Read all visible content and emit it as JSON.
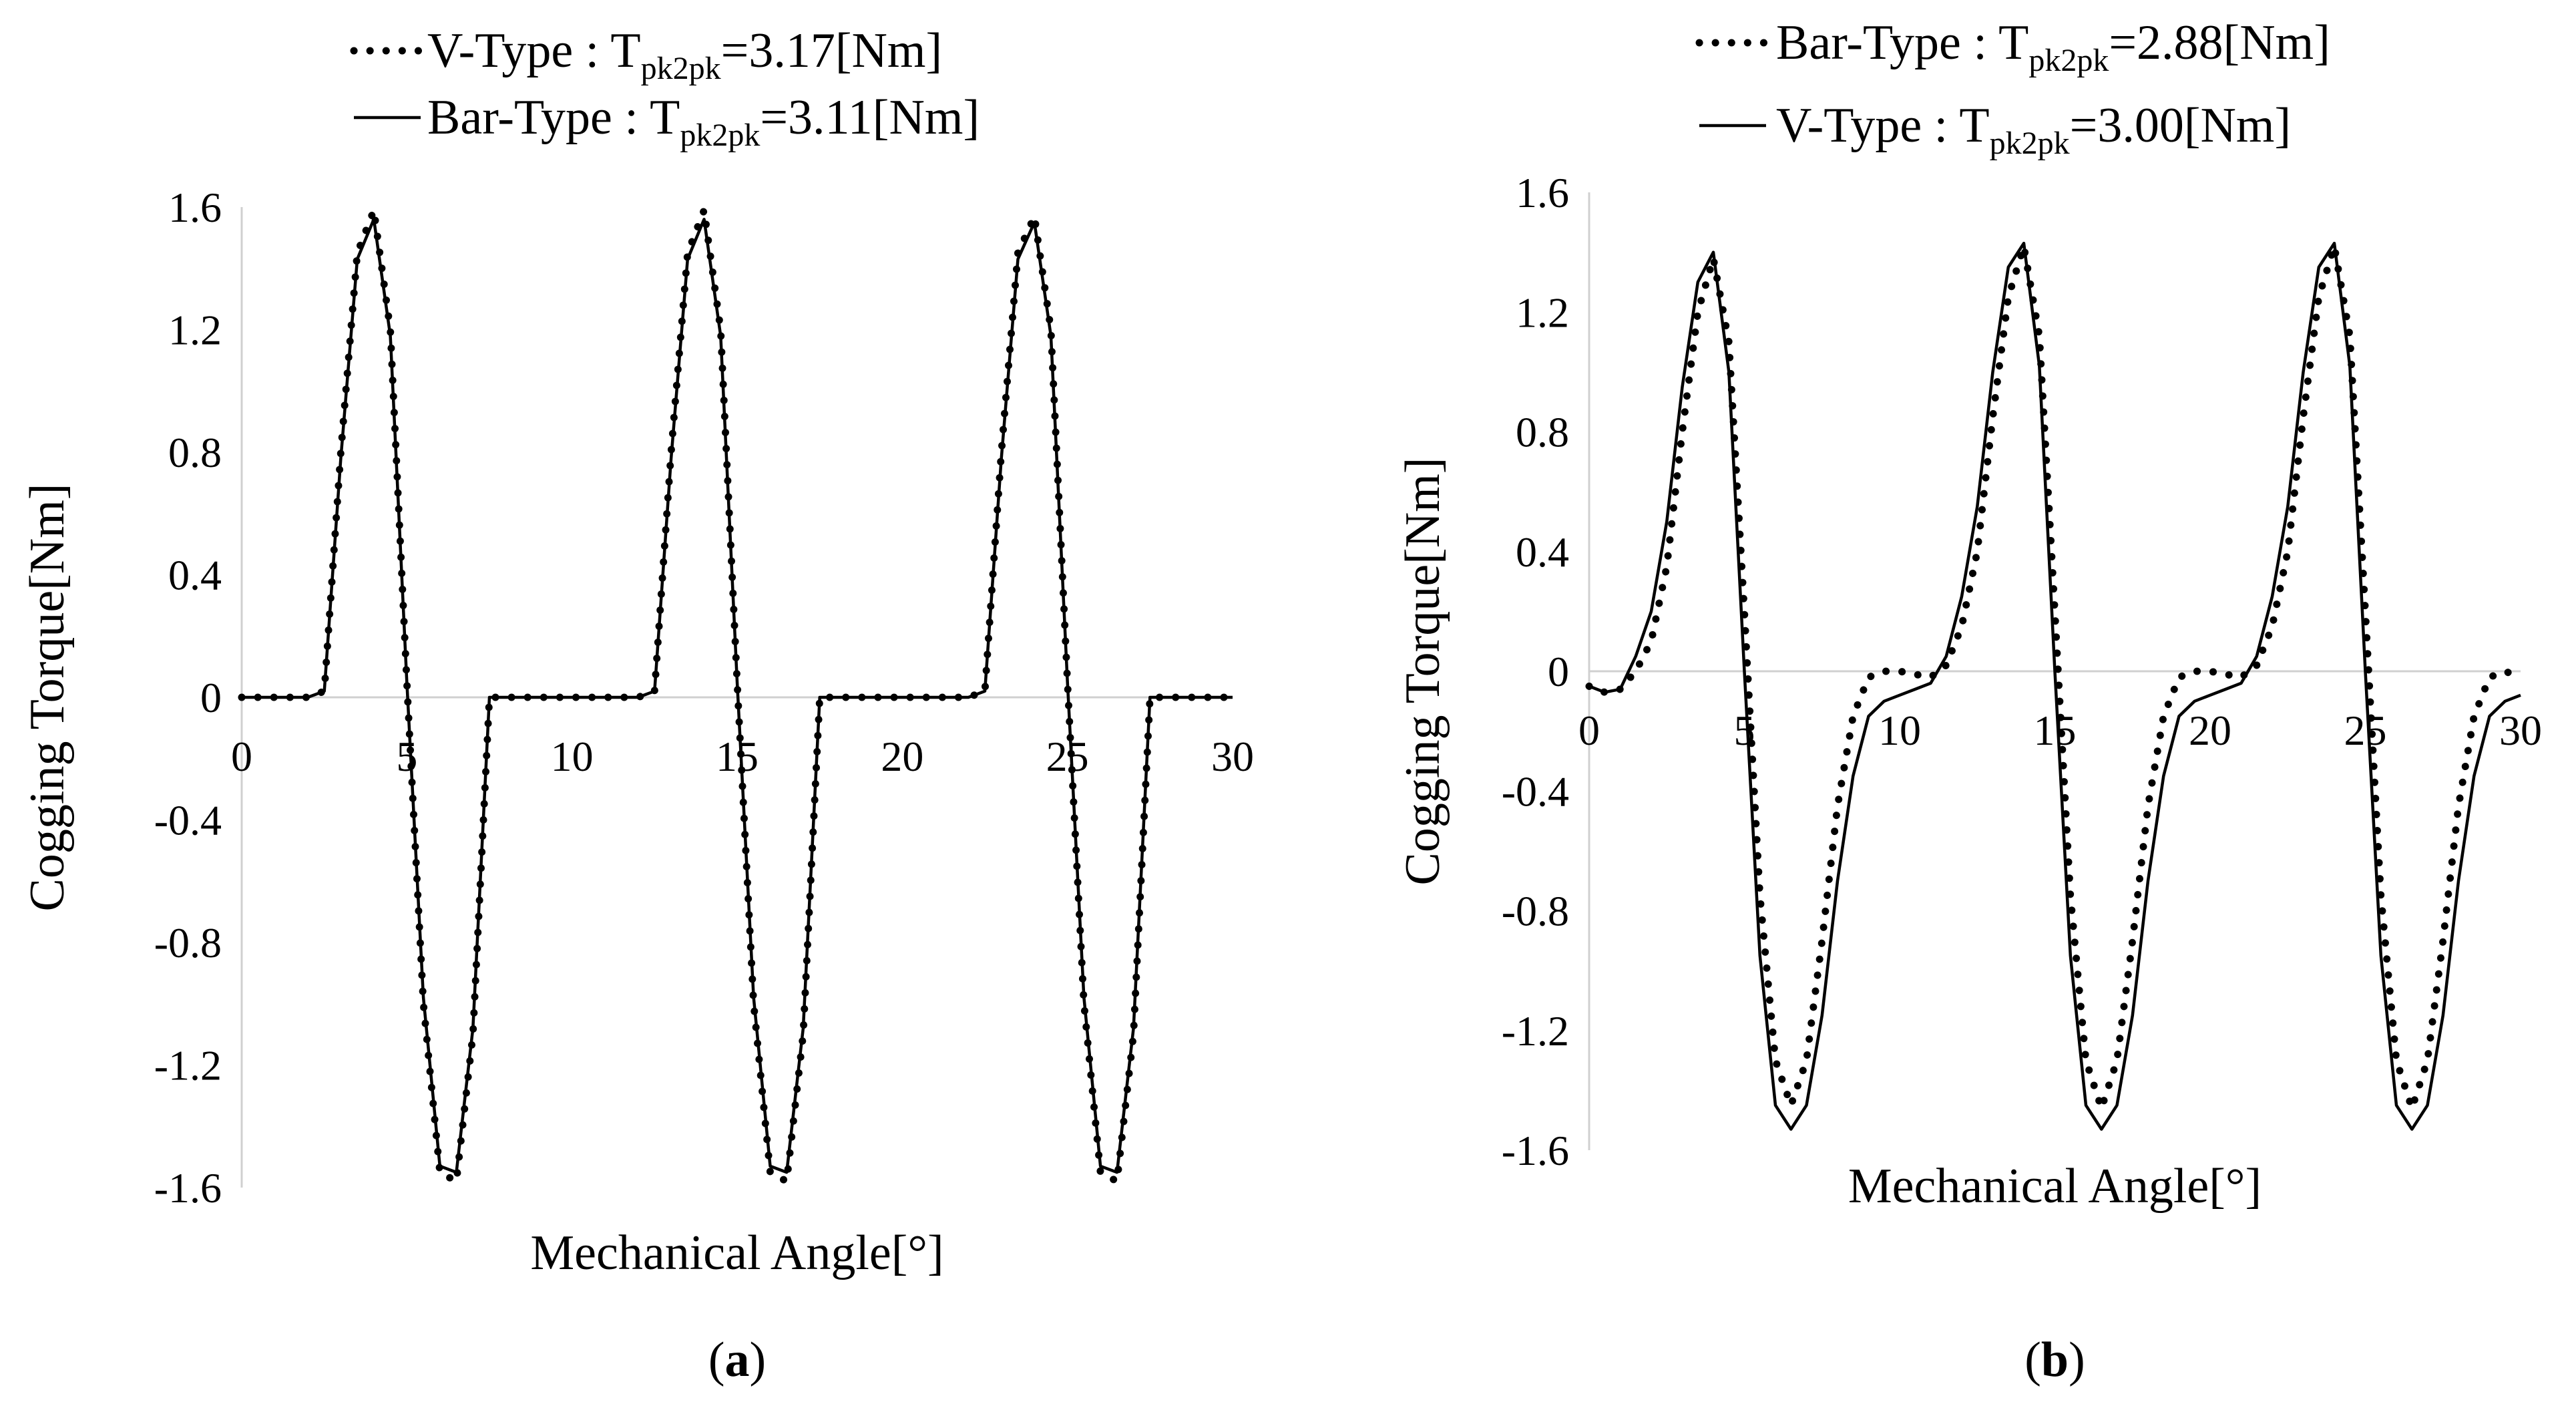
{
  "chart_data": [
    {
      "type": "line",
      "panel_label": "(a)",
      "panel_letter": "a",
      "xlabel": "Mechanical Angle[°]",
      "ylabel": "Cogging Torque[Nm]",
      "xlim": [
        0,
        30
      ],
      "ylim": [
        -1.6,
        1.6
      ],
      "x_ticks": [
        "0",
        "5",
        "10",
        "15",
        "20",
        "25",
        "30"
      ],
      "y_ticks": [
        "1.6",
        "1.2",
        "0.8",
        "0.4",
        "0",
        "-0.4",
        "-0.8",
        "-1.2",
        "-1.6"
      ],
      "grid": false,
      "legend_position": "top",
      "series": [
        {
          "name": "V-Type : T",
          "name_sub": "pk2pk",
          "name_tail": "=3.17[Nm]",
          "style": "dotted",
          "x": [
            0,
            1,
            2,
            2.5,
            3,
            3.5,
            4,
            4.5,
            5,
            5.5,
            6,
            6.5,
            7,
            7.5,
            8,
            9,
            10,
            11,
            12,
            12.5,
            13,
            13.5,
            14,
            14.5,
            15,
            15.5,
            16,
            16.5,
            17,
            17.5,
            18,
            19,
            20,
            21,
            22,
            22.5,
            23,
            23.5,
            24,
            24.5,
            25,
            25.5,
            26,
            26.5,
            27,
            27.5,
            28,
            29,
            30
          ],
          "y": [
            0,
            0,
            0,
            0.02,
            0.8,
            1.45,
            1.59,
            1.2,
            0.05,
            -1.0,
            -1.55,
            -1.58,
            -1.1,
            0,
            0,
            0,
            0,
            0,
            0,
            0.02,
            0.8,
            1.45,
            1.59,
            1.2,
            0.05,
            -1.0,
            -1.55,
            -1.58,
            -1.1,
            0,
            0,
            0,
            0,
            0,
            0,
            0.02,
            0.8,
            1.45,
            1.57,
            1.2,
            0.05,
            -1.0,
            -1.55,
            -1.58,
            -1.1,
            0,
            0,
            0,
            0
          ]
        },
        {
          "name": "Bar-Type : T",
          "name_sub": "pk2pk",
          "name_tail": "=3.11[Nm]",
          "style": "solid",
          "x": [
            0,
            1,
            2,
            2.5,
            3,
            3.5,
            4,
            4.5,
            5,
            5.5,
            6,
            6.5,
            7,
            7.5,
            8,
            9,
            10,
            11,
            12,
            12.5,
            13,
            13.5,
            14,
            14.5,
            15,
            15.5,
            16,
            16.5,
            17,
            17.5,
            18,
            19,
            20,
            21,
            22,
            22.5,
            23,
            23.5,
            24,
            24.5,
            25,
            25.5,
            26,
            26.5,
            27,
            27.5,
            28,
            29,
            30
          ],
          "y": [
            0,
            0,
            0,
            0.02,
            0.78,
            1.43,
            1.56,
            1.18,
            0.05,
            -0.98,
            -1.53,
            -1.55,
            -1.08,
            0,
            0,
            0,
            0,
            0,
            0,
            0.02,
            0.78,
            1.43,
            1.56,
            1.18,
            0.05,
            -0.98,
            -1.53,
            -1.55,
            -1.08,
            0,
            0,
            0,
            0,
            0,
            0,
            0.02,
            0.78,
            1.43,
            1.55,
            1.18,
            0.05,
            -0.98,
            -1.53,
            -1.55,
            -1.08,
            0,
            0,
            0,
            0
          ]
        }
      ]
    },
    {
      "type": "line",
      "panel_label": "(b)",
      "panel_letter": "b",
      "xlabel": "Mechanical Angle[°]",
      "ylabel": "Cogging Torque[Nm]",
      "xlim": [
        0,
        30
      ],
      "ylim": [
        -1.6,
        1.6
      ],
      "x_ticks": [
        "0",
        "5",
        "10",
        "15",
        "20",
        "25",
        "30"
      ],
      "y_ticks": [
        "1.6",
        "1.2",
        "0.8",
        "0.4",
        "0",
        "-0.4",
        "-0.8",
        "-1.2",
        "-1.6"
      ],
      "grid": false,
      "legend_position": "top",
      "series": [
        {
          "name": "Bar-Type : T",
          "name_sub": "pk2pk",
          "name_tail": "=2.88[Nm]",
          "style": "dotted",
          "x": [
            0,
            0.5,
            1,
            1.5,
            2,
            2.5,
            3,
            3.5,
            4,
            4.5,
            5,
            5.5,
            6,
            6.5,
            7,
            7.5,
            8,
            8.5,
            9,
            9.5,
            10,
            10.5,
            11,
            11.5,
            12,
            12.5,
            13,
            13.5,
            14,
            14.5,
            15,
            15.5,
            16,
            16.5,
            17,
            17.5,
            18,
            18.5,
            19,
            19.5,
            20,
            20.5,
            21,
            21.5,
            22,
            22.5,
            23,
            23.5,
            24,
            24.5,
            25,
            25.5,
            26,
            26.5,
            27,
            27.5,
            28,
            28.5,
            29,
            29.5,
            30
          ],
          "y": [
            -0.05,
            -0.07,
            -0.06,
            0.0,
            0.1,
            0.35,
            0.8,
            1.2,
            1.38,
            1.1,
            0.2,
            -0.75,
            -1.3,
            -1.45,
            -1.3,
            -0.9,
            -0.45,
            -0.15,
            -0.02,
            0.0,
            0.0,
            -0.01,
            -0.02,
            0.02,
            0.15,
            0.4,
            0.85,
            1.25,
            1.42,
            1.12,
            0.2,
            -0.75,
            -1.3,
            -1.46,
            -1.3,
            -0.9,
            -0.45,
            -0.15,
            -0.02,
            0.0,
            0.0,
            -0.01,
            -0.02,
            0.02,
            0.15,
            0.4,
            0.85,
            1.25,
            1.42,
            1.12,
            0.2,
            -0.75,
            -1.3,
            -1.46,
            -1.3,
            -0.9,
            -0.45,
            -0.15,
            -0.02,
            0.0,
            -0.02
          ]
        },
        {
          "name": "V-Type : T",
          "name_sub": "pk2pk",
          "name_tail": "=3.00[Nm]",
          "style": "solid",
          "x": [
            0,
            0.5,
            1,
            1.5,
            2,
            2.5,
            3,
            3.5,
            4,
            4.5,
            5,
            5.5,
            6,
            6.5,
            7,
            7.5,
            8,
            8.5,
            9,
            9.5,
            10,
            10.5,
            11,
            11.5,
            12,
            12.5,
            13,
            13.5,
            14,
            14.5,
            15,
            15.5,
            16,
            16.5,
            17,
            17.5,
            18,
            18.5,
            19,
            19.5,
            20,
            20.5,
            21,
            21.5,
            22,
            22.5,
            23,
            23.5,
            24,
            24.5,
            25,
            25.5,
            26,
            26.5,
            27,
            27.5,
            28,
            28.5,
            29,
            29.5,
            30
          ],
          "y": [
            -0.05,
            -0.07,
            -0.06,
            0.05,
            0.2,
            0.5,
            0.95,
            1.3,
            1.4,
            1.0,
            0.0,
            -0.95,
            -1.45,
            -1.53,
            -1.45,
            -1.15,
            -0.7,
            -0.35,
            -0.15,
            -0.1,
            -0.08,
            -0.06,
            -0.04,
            0.05,
            0.25,
            0.55,
            1.0,
            1.35,
            1.43,
            1.02,
            0.0,
            -0.95,
            -1.45,
            -1.53,
            -1.45,
            -1.15,
            -0.7,
            -0.35,
            -0.15,
            -0.1,
            -0.08,
            -0.06,
            -0.04,
            0.05,
            0.25,
            0.55,
            1.0,
            1.35,
            1.43,
            1.02,
            0.0,
            -0.95,
            -1.45,
            -1.53,
            -1.45,
            -1.15,
            -0.7,
            -0.35,
            -0.15,
            -0.1,
            -0.08
          ]
        }
      ]
    }
  ]
}
